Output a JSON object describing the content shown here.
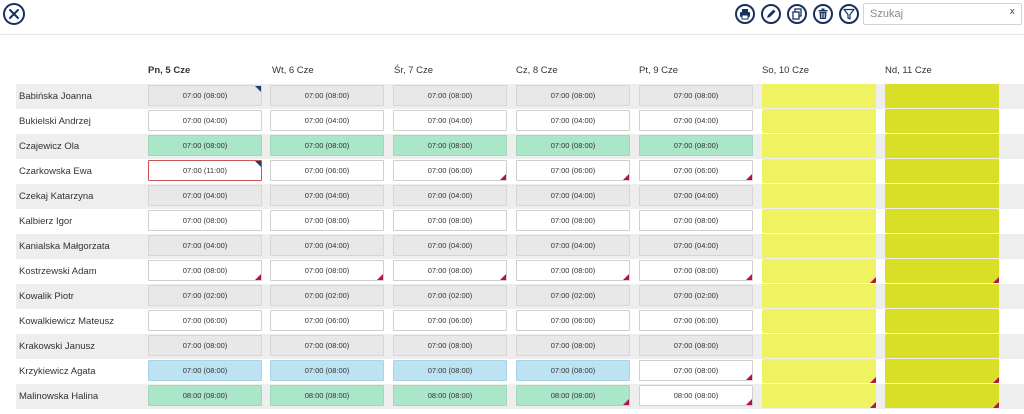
{
  "toolbar": {
    "close": "close-icon",
    "buttons": [
      {
        "name": "print-button",
        "icon": "printer-icon"
      },
      {
        "name": "edit-button",
        "icon": "pencil-icon"
      },
      {
        "name": "copy-button",
        "icon": "copy-icon"
      },
      {
        "name": "delete-button",
        "icon": "trash-icon"
      },
      {
        "name": "filter-button",
        "icon": "filter-icon"
      }
    ],
    "search_placeholder": "Szukaj",
    "search_value": "",
    "search_clear": "x"
  },
  "colors": {
    "primary": "#17315e",
    "grey": "#e8e8e8",
    "green": "#abe6c8",
    "blue": "#bde3f3",
    "saturday": "#eff261",
    "sunday": "#d9df27",
    "marker_red": "#b3134a",
    "marker_blue": "#1f3d73"
  },
  "days": [
    {
      "label": "Pn, 5 Cze",
      "today": true
    },
    {
      "label": "Wt, 6 Cze",
      "today": false
    },
    {
      "label": "Śr, 7 Cze",
      "today": false
    },
    {
      "label": "Cz, 8 Cze",
      "today": false
    },
    {
      "label": "Pt, 9 Cze",
      "today": false
    },
    {
      "label": "So, 10 Cze",
      "today": false
    },
    {
      "label": "Nd, 11 Cze",
      "today": false
    }
  ],
  "rows": [
    {
      "name": "Babińska Joanna",
      "cells": [
        {
          "text": "07:00 (08:00)",
          "style": "grey",
          "corner": "blue"
        },
        {
          "text": "07:00 (08:00)",
          "style": "grey"
        },
        {
          "text": "07:00 (08:00)",
          "style": "grey"
        },
        {
          "text": "07:00 (08:00)",
          "style": "grey"
        },
        {
          "text": "07:00 (08:00)",
          "style": "grey"
        },
        {
          "text": "",
          "style": "sat"
        },
        {
          "text": "",
          "style": "sun"
        }
      ]
    },
    {
      "name": "Bukielski Andrzej",
      "cells": [
        {
          "text": "07:00 (04:00)",
          "style": "blank"
        },
        {
          "text": "07:00 (04:00)",
          "style": "blank"
        },
        {
          "text": "07:00 (04:00)",
          "style": "blank"
        },
        {
          "text": "07:00 (04:00)",
          "style": "blank"
        },
        {
          "text": "07:00 (04:00)",
          "style": "blank"
        },
        {
          "text": "",
          "style": "sat"
        },
        {
          "text": "",
          "style": "sun"
        }
      ]
    },
    {
      "name": "Czajewicz Ola",
      "cells": [
        {
          "text": "07:00 (08:00)",
          "style": "green"
        },
        {
          "text": "07:00 (08:00)",
          "style": "green"
        },
        {
          "text": "07:00 (08:00)",
          "style": "green"
        },
        {
          "text": "07:00 (08:00)",
          "style": "green"
        },
        {
          "text": "07:00 (08:00)",
          "style": "green"
        },
        {
          "text": "",
          "style": "sat"
        },
        {
          "text": "",
          "style": "sun"
        }
      ]
    },
    {
      "name": "Czarkowska Ewa",
      "cells": [
        {
          "text": "07:00 (11:00)",
          "style": "blank",
          "selected": true,
          "corner": "blue"
        },
        {
          "text": "07:00 (06:00)",
          "style": "blank"
        },
        {
          "text": "07:00 (06:00)",
          "style": "blank",
          "corner": "red"
        },
        {
          "text": "07:00 (06:00)",
          "style": "blank",
          "corner": "red"
        },
        {
          "text": "07:00 (06:00)",
          "style": "blank",
          "corner": "red"
        },
        {
          "text": "",
          "style": "sat"
        },
        {
          "text": "",
          "style": "sun"
        }
      ]
    },
    {
      "name": "Czekaj Katarzyna",
      "cells": [
        {
          "text": "07:00 (04:00)",
          "style": "grey"
        },
        {
          "text": "07:00 (04:00)",
          "style": "grey"
        },
        {
          "text": "07:00 (04:00)",
          "style": "grey"
        },
        {
          "text": "07:00 (04:00)",
          "style": "grey"
        },
        {
          "text": "07:00 (04:00)",
          "style": "grey"
        },
        {
          "text": "",
          "style": "sat"
        },
        {
          "text": "",
          "style": "sun"
        }
      ]
    },
    {
      "name": "Kalbierz Igor",
      "cells": [
        {
          "text": "07:00 (08:00)",
          "style": "blank"
        },
        {
          "text": "07:00 (08:00)",
          "style": "blank"
        },
        {
          "text": "07:00 (08:00)",
          "style": "blank"
        },
        {
          "text": "07:00 (08:00)",
          "style": "blank"
        },
        {
          "text": "07:00 (08:00)",
          "style": "blank"
        },
        {
          "text": "",
          "style": "sat"
        },
        {
          "text": "",
          "style": "sun"
        }
      ]
    },
    {
      "name": "Kanialska Małgorzata",
      "cells": [
        {
          "text": "07:00 (04:00)",
          "style": "grey"
        },
        {
          "text": "07:00 (04:00)",
          "style": "grey"
        },
        {
          "text": "07:00 (04:00)",
          "style": "grey"
        },
        {
          "text": "07:00 (04:00)",
          "style": "grey"
        },
        {
          "text": "07:00 (04:00)",
          "style": "grey"
        },
        {
          "text": "",
          "style": "sat"
        },
        {
          "text": "",
          "style": "sun"
        }
      ]
    },
    {
      "name": "Kostrzewski Adam",
      "cells": [
        {
          "text": "07:00 (08:00)",
          "style": "blank",
          "corner": "red"
        },
        {
          "text": "07:00 (08:00)",
          "style": "blank",
          "corner": "red"
        },
        {
          "text": "07:00 (08:00)",
          "style": "blank",
          "corner": "red"
        },
        {
          "text": "07:00 (08:00)",
          "style": "blank",
          "corner": "red"
        },
        {
          "text": "07:00 (08:00)",
          "style": "blank",
          "corner": "red"
        },
        {
          "text": "",
          "style": "sat",
          "corner": "red"
        },
        {
          "text": "",
          "style": "sun",
          "corner": "red"
        }
      ]
    },
    {
      "name": "Kowalik Piotr",
      "cells": [
        {
          "text": "07:00 (02:00)",
          "style": "grey"
        },
        {
          "text": "07:00 (02:00)",
          "style": "grey"
        },
        {
          "text": "07:00 (02:00)",
          "style": "grey"
        },
        {
          "text": "07:00 (02:00)",
          "style": "grey"
        },
        {
          "text": "07:00 (02:00)",
          "style": "grey"
        },
        {
          "text": "",
          "style": "sat"
        },
        {
          "text": "",
          "style": "sun"
        }
      ]
    },
    {
      "name": "Kowalkiewicz Mateusz",
      "cells": [
        {
          "text": "07:00 (06:00)",
          "style": "blank"
        },
        {
          "text": "07:00 (06:00)",
          "style": "blank"
        },
        {
          "text": "07:00 (06:00)",
          "style": "blank"
        },
        {
          "text": "07:00 (06:00)",
          "style": "blank"
        },
        {
          "text": "07:00 (06:00)",
          "style": "blank"
        },
        {
          "text": "",
          "style": "sat"
        },
        {
          "text": "",
          "style": "sun"
        }
      ]
    },
    {
      "name": "Krakowski Janusz",
      "cells": [
        {
          "text": "07:00 (08:00)",
          "style": "grey"
        },
        {
          "text": "07:00 (08:00)",
          "style": "grey"
        },
        {
          "text": "07:00 (08:00)",
          "style": "grey"
        },
        {
          "text": "07:00 (08:00)",
          "style": "grey"
        },
        {
          "text": "07:00 (08:00)",
          "style": "grey"
        },
        {
          "text": "",
          "style": "sat"
        },
        {
          "text": "",
          "style": "sun"
        }
      ]
    },
    {
      "name": "Krzykiewicz Agata",
      "cells": [
        {
          "text": "07:00 (08:00)",
          "style": "blue"
        },
        {
          "text": "07:00 (08:00)",
          "style": "blue"
        },
        {
          "text": "07:00 (08:00)",
          "style": "blue"
        },
        {
          "text": "07:00 (08:00)",
          "style": "blue"
        },
        {
          "text": "07:00 (08:00)",
          "style": "blank",
          "corner": "red"
        },
        {
          "text": "",
          "style": "sat",
          "corner": "red"
        },
        {
          "text": "",
          "style": "sun",
          "corner": "red"
        }
      ]
    },
    {
      "name": "Malinowska Halina",
      "cells": [
        {
          "text": "08:00 (08:00)",
          "style": "green"
        },
        {
          "text": "08:00 (08:00)",
          "style": "green"
        },
        {
          "text": "08:00 (08:00)",
          "style": "green"
        },
        {
          "text": "08:00 (08:00)",
          "style": "green",
          "corner": "red"
        },
        {
          "text": "08:00 (08:00)",
          "style": "blank",
          "corner": "red"
        },
        {
          "text": "",
          "style": "sat",
          "corner": "red"
        },
        {
          "text": "",
          "style": "sun",
          "corner": "red"
        }
      ]
    }
  ]
}
